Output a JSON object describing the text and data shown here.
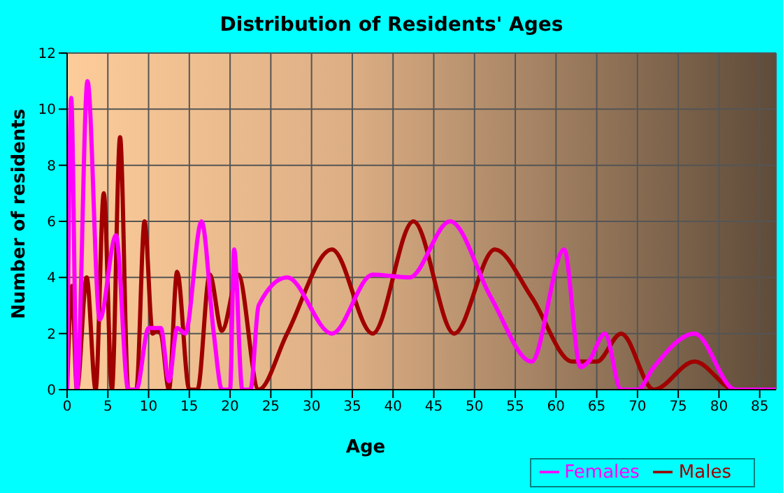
{
  "chart_data": {
    "type": "line",
    "title": "Distribution of Residents' Ages",
    "xlabel": "Age",
    "ylabel": "Number of residents",
    "xlim": [
      0,
      87
    ],
    "xticks": [
      0,
      5,
      10,
      15,
      20,
      25,
      30,
      35,
      40,
      45,
      50,
      55,
      60,
      65,
      70,
      75,
      80,
      85
    ],
    "ylim": [
      0,
      12
    ],
    "yticks": [
      0,
      2,
      4,
      6,
      8,
      10,
      12
    ],
    "grid": true,
    "legend": "bottom right",
    "marker": "none",
    "series": [
      {
        "name": "Males",
        "color": "#a00000",
        "x": [
          0,
          0.6,
          1.2,
          2.4,
          3.5,
          4.5,
          5.5,
          6.5,
          7.5,
          8.5,
          9.5,
          10.5,
          11,
          11.5,
          12.5,
          13.5,
          15,
          16,
          17.5,
          19,
          21,
          23.5,
          27,
          32.5,
          37.5,
          42.5,
          47.5,
          52.5,
          57,
          62,
          65,
          68,
          72,
          77,
          82,
          87
        ],
        "values": [
          0,
          3.7,
          0,
          4,
          0,
          7,
          0,
          9,
          0,
          0,
          6,
          2,
          2.1,
          2,
          0,
          4.2,
          0,
          0,
          4.1,
          2.1,
          4.1,
          0,
          2,
          5,
          2,
          6,
          2,
          5,
          3.3,
          1,
          1,
          2,
          0,
          1,
          0,
          0
        ]
      },
      {
        "name": "Females",
        "color": "#ff00ff",
        "x": [
          0,
          0.5,
          1.2,
          2.5,
          4,
          6,
          7.5,
          8.5,
          10,
          11.5,
          12.5,
          13.5,
          14.5,
          16.5,
          18,
          19,
          20,
          20.5,
          21.5,
          22.5,
          23.5,
          27,
          32.5,
          37.5,
          42,
          47,
          52,
          57,
          61,
          63,
          64,
          66,
          68,
          70,
          72,
          77,
          82,
          87
        ],
        "values": [
          0,
          10.4,
          0,
          11,
          2.5,
          5.5,
          0,
          0,
          2.2,
          2.2,
          0.3,
          2.2,
          2,
          6,
          2,
          0,
          0,
          5,
          0,
          0,
          3,
          4,
          2,
          4.1,
          4,
          6,
          3.3,
          1,
          5,
          0.8,
          1,
          2,
          0,
          0,
          0.8,
          2,
          0,
          0
        ]
      }
    ]
  }
}
